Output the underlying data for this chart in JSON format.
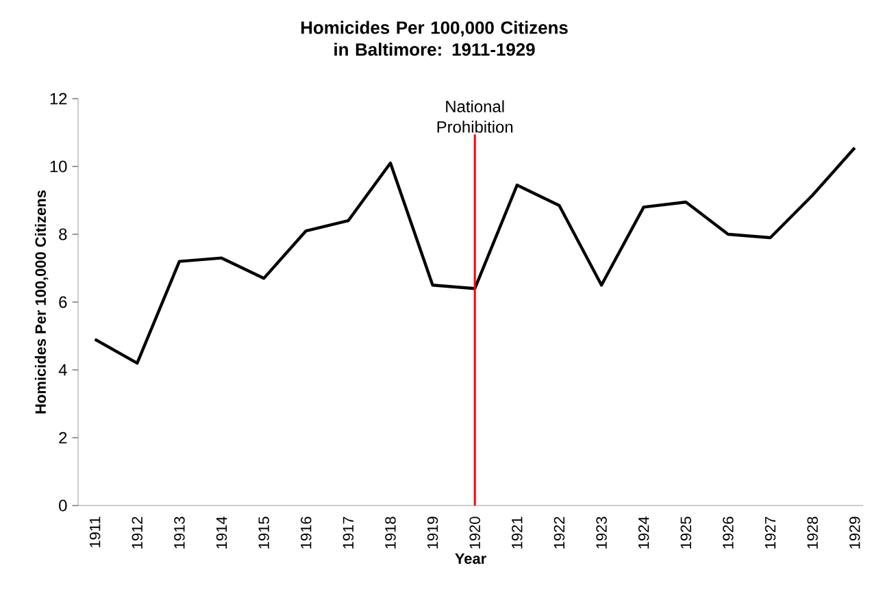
{
  "chart_data": {
    "type": "line",
    "title": "Homicides Per 100,000 Citizens in Baltimore: 1911-1929",
    "xlabel": "Year",
    "ylabel": "Homicides Per 100,000 Citizens",
    "categories": [
      "1911",
      "1912",
      "1913",
      "1914",
      "1915",
      "1916",
      "1917",
      "1918",
      "1919",
      "1920",
      "1921",
      "1922",
      "1923",
      "1924",
      "1925",
      "1926",
      "1927",
      "1928",
      "1929"
    ],
    "series": [
      {
        "color": "#000000",
        "values": [
          4.9,
          4.2,
          7.2,
          7.3,
          6.7,
          8.1,
          8.4,
          10.1,
          6.5,
          6.4,
          9.45,
          8.85,
          6.5,
          8.8,
          8.95,
          8.0,
          7.9,
          9.15,
          10.55
        ]
      }
    ],
    "ylim": [
      0,
      12
    ],
    "yticks": [
      0,
      2,
      4,
      6,
      8,
      10,
      12
    ],
    "grid": false,
    "marker": "none",
    "line_style": "solid",
    "ref_lines": [
      {
        "axis": "x",
        "value": "1920",
        "label": "National Prohibition",
        "color": "#ff0000"
      }
    ]
  }
}
